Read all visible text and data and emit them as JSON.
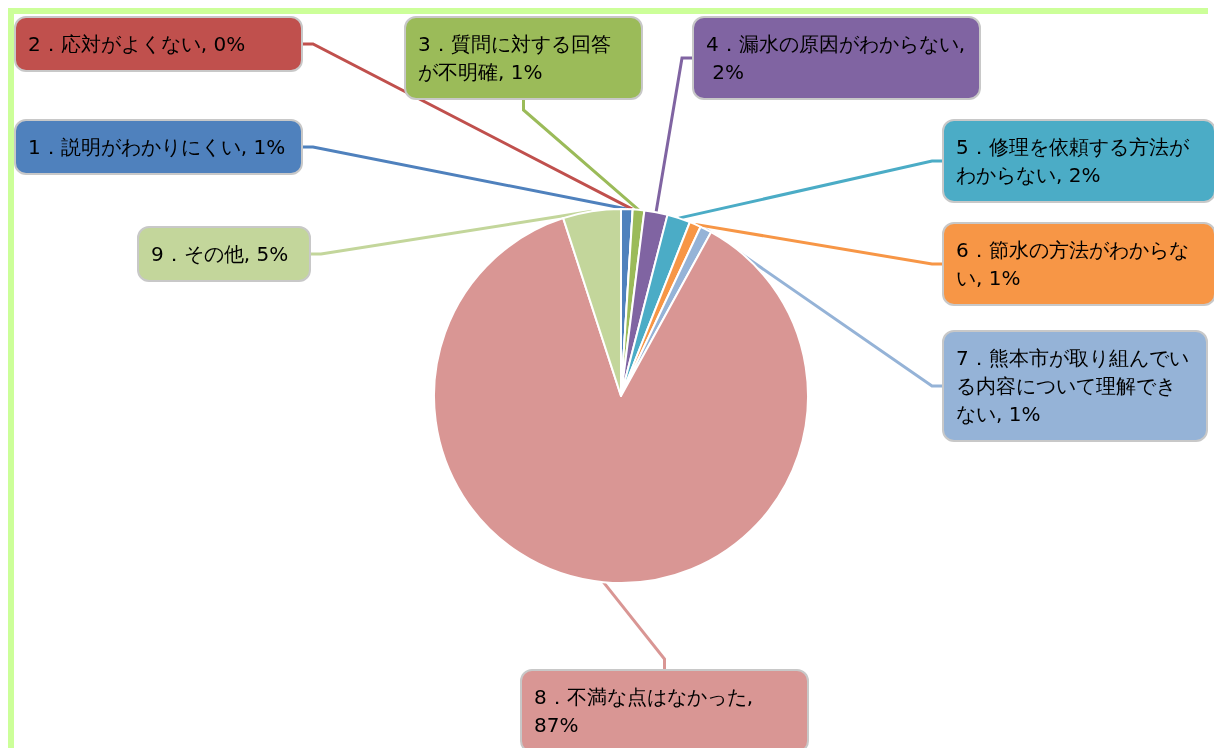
{
  "chart_data": {
    "type": "pie",
    "categories": [
      "1．説明がわかりにくい, 1%",
      "2．応対がよくない, 0%",
      "3．質問に対する回答が不明確, 1%",
      "4．漏水の原因がわからない, 2%",
      "5．修理を依頼する方法がわからない, 2%",
      "6．節水の方法がわからない, 1%",
      "7．熊本市が取り組んでいる内容について理解できない, 1%",
      "8．不満な点はなかった, 87%",
      "9．その他, 5%"
    ],
    "values": [
      1,
      0,
      1,
      2,
      2,
      1,
      1,
      87,
      5
    ],
    "colors": [
      "#4f81bd",
      "#c0504d",
      "#9bbb59",
      "#8064a2",
      "#4bacc6",
      "#f79646",
      "#95b3d7",
      "#d99694",
      "#c3d69b"
    ],
    "legend": false
  }
}
